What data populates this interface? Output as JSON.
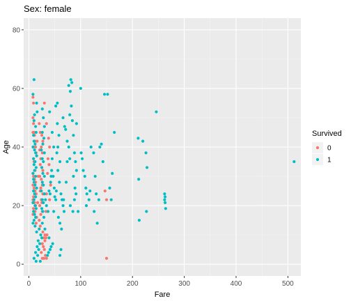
{
  "chart_data": {
    "type": "scatter",
    "title": "Sex: female",
    "xlabel": "Fare",
    "ylabel": "Age",
    "xlim": [
      -10,
      525
    ],
    "ylim": [
      -4,
      84
    ],
    "x_ticks": [
      0,
      100,
      200,
      300,
      400,
      500
    ],
    "y_ticks": [
      0,
      20,
      40,
      60,
      80
    ],
    "grid": true,
    "legend": {
      "title": "Survived",
      "placement": "right",
      "entries": [
        {
          "label": "0",
          "color": "#F8766D"
        },
        {
          "label": "1",
          "color": "#00BFC4"
        }
      ]
    },
    "series": [
      {
        "name": "0",
        "color": "#F8766D",
        "points": [
          [
            8,
            57
          ],
          [
            9,
            55
          ],
          [
            8,
            50
          ],
          [
            9,
            48
          ],
          [
            10,
            45
          ],
          [
            8,
            45
          ],
          [
            11,
            44
          ],
          [
            12,
            42
          ],
          [
            9,
            40
          ],
          [
            13,
            40
          ],
          [
            14,
            38
          ],
          [
            15,
            37
          ],
          [
            9,
            36
          ],
          [
            10,
            35
          ],
          [
            12,
            32
          ],
          [
            8,
            31
          ],
          [
            9,
            30
          ],
          [
            11,
            29
          ],
          [
            13,
            28
          ],
          [
            8,
            27
          ],
          [
            10,
            26
          ],
          [
            12,
            25
          ],
          [
            14,
            24
          ],
          [
            9,
            23
          ],
          [
            8,
            22
          ],
          [
            11,
            21
          ],
          [
            13,
            20
          ],
          [
            9,
            19
          ],
          [
            10,
            18
          ],
          [
            12,
            18
          ],
          [
            8,
            17
          ],
          [
            15,
            16
          ],
          [
            14,
            14
          ],
          [
            20,
            48
          ],
          [
            22,
            45
          ],
          [
            25,
            44
          ],
          [
            27,
            42
          ],
          [
            24,
            40
          ],
          [
            21,
            39
          ],
          [
            26,
            38
          ],
          [
            23,
            36
          ],
          [
            22,
            34
          ],
          [
            25,
            33
          ],
          [
            27,
            32
          ],
          [
            21,
            30
          ],
          [
            24,
            29
          ],
          [
            26,
            27
          ],
          [
            23,
            26
          ],
          [
            22,
            25
          ],
          [
            27,
            24
          ],
          [
            24,
            22
          ],
          [
            25,
            21
          ],
          [
            21,
            20
          ],
          [
            26,
            18
          ],
          [
            23,
            17
          ],
          [
            20,
            15
          ],
          [
            22,
            13
          ],
          [
            27,
            11
          ],
          [
            29,
            9
          ],
          [
            31,
            8
          ],
          [
            33,
            9
          ],
          [
            26,
            7
          ],
          [
            28,
            6
          ],
          [
            30,
            5
          ],
          [
            32,
            3
          ],
          [
            26,
            2
          ],
          [
            29,
            2
          ],
          [
            34,
            2
          ],
          [
            24,
            4
          ],
          [
            31,
            10
          ],
          [
            35,
            10
          ],
          [
            33,
            18
          ],
          [
            34,
            48
          ],
          [
            38,
            43
          ],
          [
            40,
            40
          ],
          [
            37,
            36
          ],
          [
            39,
            34
          ],
          [
            36,
            31
          ],
          [
            42,
            27
          ],
          [
            34,
            24
          ],
          [
            40,
            22
          ],
          [
            147,
            25
          ],
          [
            150,
            22
          ],
          [
            150,
            2
          ],
          [
            30,
            55
          ],
          [
            18,
            30
          ],
          [
            16,
            42
          ],
          [
            17,
            21
          ]
        ]
      },
      {
        "name": "1",
        "color": "#00BFC4",
        "points": [
          [
            10,
            63
          ],
          [
            8,
            58
          ],
          [
            15,
            55
          ],
          [
            16,
            52
          ],
          [
            11,
            51
          ],
          [
            10,
            49
          ],
          [
            13,
            47
          ],
          [
            14,
            45
          ],
          [
            9,
            44
          ],
          [
            10,
            42
          ],
          [
            12,
            41
          ],
          [
            8,
            40
          ],
          [
            11,
            39
          ],
          [
            13,
            38
          ],
          [
            15,
            37
          ],
          [
            9,
            36
          ],
          [
            12,
            35
          ],
          [
            10,
            34
          ],
          [
            14,
            33
          ],
          [
            11,
            32
          ],
          [
            8,
            31
          ],
          [
            13,
            30
          ],
          [
            9,
            29
          ],
          [
            10,
            28
          ],
          [
            12,
            27
          ],
          [
            15,
            26
          ],
          [
            9,
            25
          ],
          [
            11,
            24
          ],
          [
            13,
            23
          ],
          [
            10,
            22
          ],
          [
            8,
            21
          ],
          [
            12,
            20
          ],
          [
            14,
            19
          ],
          [
            9,
            18
          ],
          [
            11,
            17
          ],
          [
            13,
            16
          ],
          [
            10,
            15
          ],
          [
            8,
            14
          ],
          [
            12,
            13
          ],
          [
            20,
            12
          ],
          [
            15,
            11
          ],
          [
            23,
            10
          ],
          [
            25,
            9
          ],
          [
            18,
            8
          ],
          [
            21,
            7
          ],
          [
            16,
            6
          ],
          [
            19,
            5
          ],
          [
            13,
            4
          ],
          [
            17,
            3
          ],
          [
            10,
            2
          ],
          [
            14,
            1
          ],
          [
            22,
            1
          ],
          [
            26,
            53
          ],
          [
            28,
            50
          ],
          [
            30,
            47
          ],
          [
            26,
            45
          ],
          [
            29,
            43
          ],
          [
            27,
            41
          ],
          [
            24,
            39
          ],
          [
            30,
            38
          ],
          [
            26,
            36
          ],
          [
            28,
            35
          ],
          [
            25,
            33
          ],
          [
            27,
            31
          ],
          [
            30,
            30
          ],
          [
            26,
            28
          ],
          [
            28,
            27
          ],
          [
            24,
            25
          ],
          [
            30,
            24
          ],
          [
            26,
            22
          ],
          [
            28,
            21
          ],
          [
            25,
            19
          ],
          [
            27,
            18
          ],
          [
            29,
            16
          ],
          [
            26,
            14
          ],
          [
            31,
            12
          ],
          [
            32,
            22
          ],
          [
            34,
            20
          ],
          [
            37,
            18
          ],
          [
            39,
            25
          ],
          [
            41,
            24
          ],
          [
            43,
            30
          ],
          [
            45,
            36
          ],
          [
            47,
            30
          ],
          [
            49,
            26
          ],
          [
            52,
            22
          ],
          [
            54,
            38
          ],
          [
            56,
            40
          ],
          [
            58,
            44
          ],
          [
            60,
            35
          ],
          [
            56,
            32
          ],
          [
            59,
            28
          ],
          [
            62,
            24
          ],
          [
            64,
            22
          ],
          [
            66,
            20
          ],
          [
            68,
            18
          ],
          [
            57,
            16
          ],
          [
            60,
            14
          ],
          [
            63,
            12
          ],
          [
            66,
            50
          ],
          [
            69,
            47
          ],
          [
            71,
            46
          ],
          [
            74,
            42
          ],
          [
            77,
            40
          ],
          [
            79,
            36
          ],
          [
            81,
            63
          ],
          [
            83,
            62
          ],
          [
            77,
            61
          ],
          [
            80,
            59
          ],
          [
            82,
            54
          ],
          [
            79,
            51
          ],
          [
            84,
            49
          ],
          [
            86,
            44
          ],
          [
            88,
            38
          ],
          [
            90,
            35
          ],
          [
            92,
            32
          ],
          [
            86,
            30
          ],
          [
            89,
            26
          ],
          [
            91,
            24
          ],
          [
            88,
            22
          ],
          [
            80,
            20
          ],
          [
            85,
            18
          ],
          [
            92,
            48
          ],
          [
            52,
            54
          ],
          [
            55,
            55
          ],
          [
            45,
            45
          ],
          [
            40,
            52
          ],
          [
            44,
            32
          ],
          [
            42,
            28
          ],
          [
            48,
            18
          ],
          [
            50,
            23
          ],
          [
            53,
            25
          ],
          [
            36,
            3
          ],
          [
            38,
            4
          ],
          [
            41,
            5
          ],
          [
            43,
            6
          ],
          [
            46,
            7
          ],
          [
            39,
            9
          ],
          [
            100,
            60
          ],
          [
            101,
            38
          ],
          [
            103,
            36
          ],
          [
            105,
            32
          ],
          [
            108,
            30
          ],
          [
            110,
            26
          ],
          [
            112,
            24
          ],
          [
            116,
            22
          ],
          [
            111,
            20
          ],
          [
            120,
            40
          ],
          [
            125,
            38
          ],
          [
            128,
            30
          ],
          [
            130,
            24
          ],
          [
            135,
            22
          ],
          [
            126,
            18
          ],
          [
            132,
            14
          ],
          [
            137,
            40
          ],
          [
            140,
            41
          ],
          [
            143,
            35
          ],
          [
            146,
            58
          ],
          [
            152,
            58
          ],
          [
            156,
            26
          ],
          [
            159,
            22
          ],
          [
            161,
            31
          ],
          [
            165,
            45
          ],
          [
            211,
            43
          ],
          [
            212,
            29
          ],
          [
            213,
            15
          ],
          [
            220,
            42
          ],
          [
            226,
            38
          ],
          [
            227,
            18
          ],
          [
            228,
            33
          ],
          [
            246,
            52
          ],
          [
            262,
            24
          ],
          [
            263,
            23
          ],
          [
            262,
            22
          ],
          [
            263,
            21
          ],
          [
            264,
            19
          ],
          [
            512,
            35
          ],
          [
            60,
            3
          ],
          [
            62,
            5
          ],
          [
            48,
            40
          ],
          [
            72,
            28
          ],
          [
            95,
            18
          ],
          [
            118,
            25
          ],
          [
            74,
            35
          ],
          [
            67,
            22
          ],
          [
            55,
            48
          ]
        ]
      }
    ]
  }
}
